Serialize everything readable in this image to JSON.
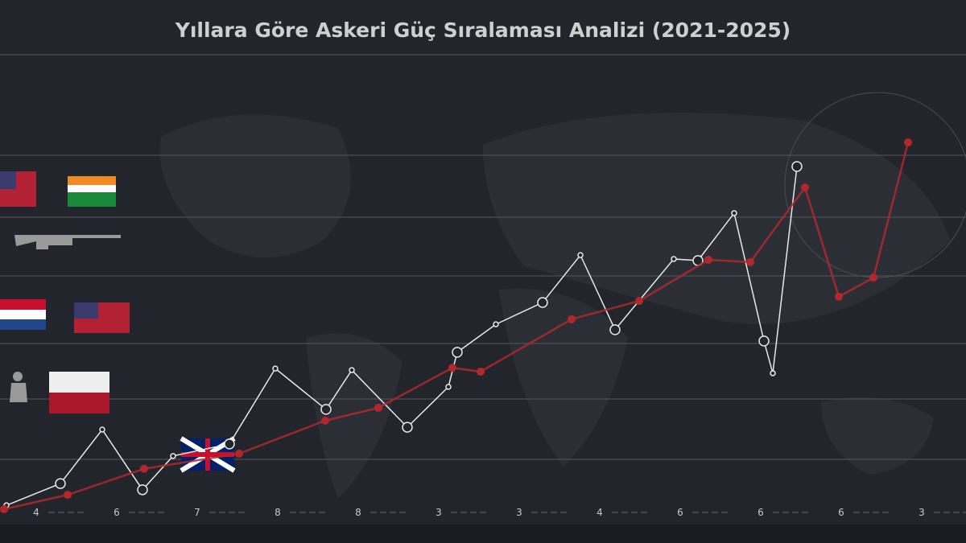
{
  "chart_data": {
    "type": "line",
    "title": "Yıllara Göre Askeri Güç Sıralaması Analizi (2021-2025)",
    "x_labels": [
      "4",
      "6",
      "7",
      "8",
      "8",
      "3",
      "3",
      "4",
      "6",
      "6",
      "6",
      "3"
    ],
    "xlim": [
      0,
      12
    ],
    "ylim": [
      0,
      100
    ],
    "series": [
      {
        "color": "#e8e8e8",
        "x": [
          0.08,
          0.75,
          1.27,
          1.77,
          2.15,
          2.85,
          3.42,
          4.05,
          4.37,
          5.06,
          5.57,
          5.68,
          6.16,
          6.74,
          7.21,
          7.64,
          8.37,
          8.67,
          9.12,
          9.49,
          9.6,
          9.9
        ],
        "values": [
          1.0,
          6.6,
          20.5,
          5.0,
          13.7,
          16.8,
          36.2,
          25.7,
          35.8,
          21.1,
          31.5,
          40.4,
          47.6,
          53.2,
          65.4,
          46.2,
          64.4,
          64.0,
          76.2,
          43.3,
          35.0,
          88.2
        ]
      },
      {
        "color": "#b0282c",
        "x": [
          0.05,
          0.84,
          1.79,
          2.97,
          4.04,
          4.7,
          5.62,
          5.97,
          7.1,
          7.94,
          8.8,
          9.32,
          10.0,
          10.42,
          10.85,
          11.28
        ],
        "values": [
          0,
          3.7,
          10.4,
          14.3,
          22.8,
          26.1,
          36.4,
          35.4,
          48.9,
          53.6,
          64.2,
          63.6,
          82.8,
          54.7,
          59.6,
          94.4
        ]
      }
    ]
  }
}
